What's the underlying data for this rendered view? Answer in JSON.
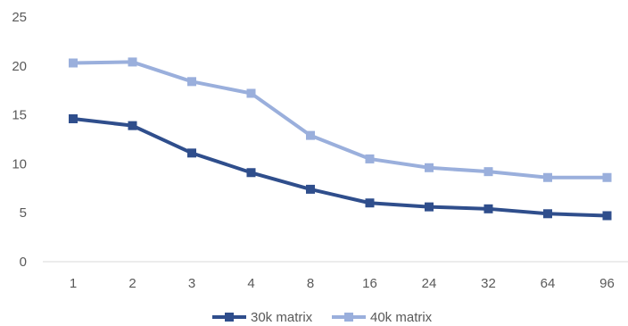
{
  "chart_data": {
    "type": "line",
    "categories": [
      "1",
      "2",
      "3",
      "4",
      "8",
      "16",
      "24",
      "32",
      "64",
      "96"
    ],
    "series": [
      {
        "name": "30k matrix",
        "color": "#2f4e8c",
        "values": [
          14.6,
          13.9,
          11.1,
          9.1,
          7.4,
          6.0,
          5.6,
          5.4,
          4.9,
          4.7
        ]
      },
      {
        "name": "40k matrix",
        "color": "#9aafdc",
        "values": [
          20.3,
          20.4,
          18.4,
          17.2,
          12.9,
          10.5,
          9.6,
          9.2,
          8.6,
          8.6
        ]
      }
    ],
    "yticks": [
      0,
      5,
      10,
      15,
      20,
      25
    ],
    "ylim": [
      0,
      25
    ],
    "grid": false,
    "legend_position": "bottom",
    "title": "",
    "xlabel": "",
    "ylabel": ""
  }
}
